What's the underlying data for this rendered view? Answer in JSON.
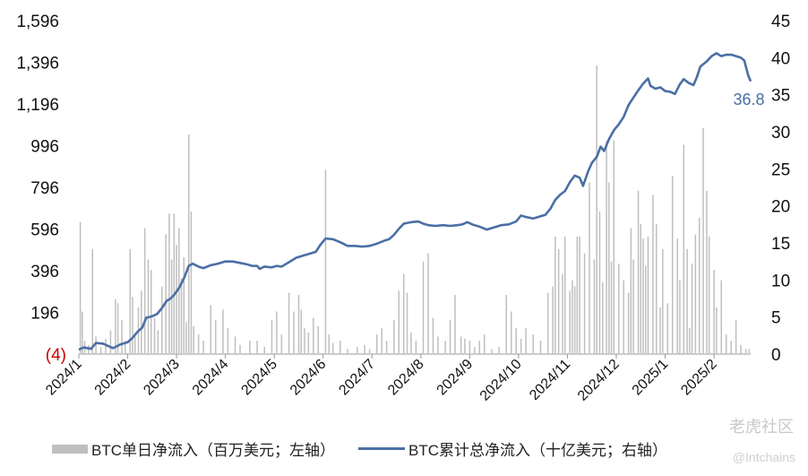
{
  "chart_data": {
    "type": "bar+line",
    "title": "",
    "left_axis": {
      "ticks": [
        "1,596",
        "1,396",
        "1,196",
        "996",
        "796",
        "596",
        "396",
        "196",
        "(4)"
      ],
      "tick_values": [
        1596,
        1396,
        1196,
        996,
        796,
        596,
        396,
        196,
        -4
      ],
      "negative_color": "#cc0000",
      "ylim": [
        -4,
        1596
      ]
    },
    "right_axis": {
      "ticks": [
        "45",
        "40",
        "35",
        "30",
        "25",
        "20",
        "15",
        "10",
        "5",
        "0"
      ],
      "tick_values": [
        45,
        40,
        35,
        30,
        25,
        20,
        15,
        10,
        5,
        0
      ],
      "ylim": [
        0,
        45
      ]
    },
    "x_axis": {
      "ticks": [
        "2024/1",
        "2024/2",
        "2024/3",
        "2024/4",
        "2024/5",
        "2024/6",
        "2024/7",
        "2024/8",
        "2024/9",
        "2024/10",
        "2024/11",
        "2024/12",
        "2025/1",
        "2025/2"
      ],
      "range_months": [
        0,
        13.75
      ]
    },
    "series": [
      {
        "name": "BTC单日净流入（百万美元；左轴）",
        "type": "bar",
        "axis": "left",
        "color": "#bfbfbf",
        "points": [
          [
            0.03,
            630
          ],
          [
            0.07,
            200
          ],
          [
            0.12,
            60
          ],
          [
            0.2,
            40
          ],
          [
            0.28,
            500
          ],
          [
            0.35,
            80
          ],
          [
            0.45,
            30
          ],
          [
            0.55,
            70
          ],
          [
            0.65,
            110
          ],
          [
            0.75,
            260
          ],
          [
            0.8,
            240
          ],
          [
            0.88,
            160
          ],
          [
            0.95,
            60
          ],
          [
            1.05,
            500
          ],
          [
            1.1,
            270
          ],
          [
            1.15,
            90
          ],
          [
            1.22,
            220
          ],
          [
            1.28,
            300
          ],
          [
            1.35,
            600
          ],
          [
            1.42,
            450
          ],
          [
            1.48,
            400
          ],
          [
            1.55,
            170
          ],
          [
            1.62,
            110
          ],
          [
            1.7,
            320
          ],
          [
            1.78,
            570
          ],
          [
            1.85,
            670
          ],
          [
            1.9,
            450
          ],
          [
            1.95,
            670
          ],
          [
            2.0,
            520
          ],
          [
            2.05,
            600
          ],
          [
            2.1,
            360
          ],
          [
            2.15,
            460
          ],
          [
            2.2,
            150
          ],
          [
            2.25,
            1050
          ],
          [
            2.3,
            680
          ],
          [
            2.35,
            130
          ],
          [
            2.45,
            90
          ],
          [
            2.55,
            60
          ],
          [
            2.7,
            230
          ],
          [
            2.8,
            160
          ],
          [
            2.95,
            210
          ],
          [
            3.05,
            120
          ],
          [
            3.2,
            80
          ],
          [
            3.3,
            40
          ],
          [
            3.5,
            60
          ],
          [
            3.65,
            60
          ],
          [
            3.8,
            30
          ],
          [
            3.95,
            160
          ],
          [
            4.05,
            200
          ],
          [
            4.15,
            90
          ],
          [
            4.3,
            290
          ],
          [
            4.4,
            200
          ],
          [
            4.5,
            280
          ],
          [
            4.55,
            210
          ],
          [
            4.62,
            120
          ],
          [
            4.7,
            100
          ],
          [
            4.8,
            170
          ],
          [
            4.9,
            130
          ],
          [
            5.05,
            880
          ],
          [
            5.12,
            90
          ],
          [
            5.2,
            50
          ],
          [
            5.35,
            60
          ],
          [
            5.5,
            20
          ],
          [
            5.7,
            30
          ],
          [
            5.85,
            40
          ],
          [
            5.95,
            20
          ],
          [
            6.1,
            90
          ],
          [
            6.2,
            120
          ],
          [
            6.3,
            60
          ],
          [
            6.45,
            160
          ],
          [
            6.55,
            300
          ],
          [
            6.65,
            380
          ],
          [
            6.72,
            290
          ],
          [
            6.8,
            100
          ],
          [
            6.9,
            60
          ],
          [
            7.05,
            440
          ],
          [
            7.15,
            480
          ],
          [
            7.25,
            170
          ],
          [
            7.35,
            80
          ],
          [
            7.5,
            60
          ],
          [
            7.6,
            160
          ],
          [
            7.7,
            280
          ],
          [
            7.82,
            80
          ],
          [
            7.9,
            70
          ],
          [
            8.0,
            60
          ],
          [
            8.1,
            30
          ],
          [
            8.2,
            60
          ],
          [
            8.3,
            90
          ],
          [
            8.45,
            20
          ],
          [
            8.6,
            30
          ],
          [
            8.75,
            280
          ],
          [
            8.85,
            200
          ],
          [
            8.95,
            120
          ],
          [
            9.05,
            70
          ],
          [
            9.15,
            120
          ],
          [
            9.3,
            90
          ],
          [
            9.45,
            60
          ],
          [
            9.6,
            290
          ],
          [
            9.7,
            320
          ],
          [
            9.75,
            560
          ],
          [
            9.82,
            500
          ],
          [
            9.9,
            380
          ],
          [
            9.95,
            560
          ],
          [
            10.05,
            300
          ],
          [
            10.1,
            350
          ],
          [
            10.15,
            320
          ],
          [
            10.2,
            560
          ],
          [
            10.25,
            560
          ],
          [
            10.35,
            480
          ],
          [
            10.45,
            820
          ],
          [
            10.55,
            450
          ],
          [
            10.6,
            1380
          ],
          [
            10.66,
            680
          ],
          [
            10.72,
            340
          ],
          [
            10.8,
            1020
          ],
          [
            10.85,
            820
          ],
          [
            10.9,
            440
          ],
          [
            10.95,
            1020
          ],
          [
            11.05,
            430
          ],
          [
            11.15,
            350
          ],
          [
            11.25,
            290
          ],
          [
            11.3,
            600
          ],
          [
            11.35,
            450
          ],
          [
            11.45,
            780
          ],
          [
            11.5,
            620
          ],
          [
            11.55,
            550
          ],
          [
            11.6,
            420
          ],
          [
            11.65,
            560
          ],
          [
            11.75,
            760
          ],
          [
            11.82,
            620
          ],
          [
            11.9,
            220
          ],
          [
            11.95,
            500
          ],
          [
            12.05,
            240
          ],
          [
            12.15,
            850
          ],
          [
            12.25,
            550
          ],
          [
            12.3,
            350
          ],
          [
            12.38,
            1000
          ],
          [
            12.45,
            500
          ],
          [
            12.5,
            120
          ],
          [
            12.55,
            430
          ],
          [
            12.62,
            570
          ],
          [
            12.7,
            650
          ],
          [
            12.78,
            1080
          ],
          [
            12.85,
            780
          ],
          [
            12.9,
            560
          ],
          [
            13.0,
            400
          ],
          [
            13.05,
            220
          ],
          [
            13.15,
            350
          ],
          [
            13.25,
            90
          ],
          [
            13.35,
            60
          ],
          [
            13.45,
            160
          ],
          [
            13.55,
            40
          ],
          [
            13.65,
            20
          ],
          [
            13.72,
            20
          ]
        ]
      },
      {
        "name": "BTC累计总净流入（十亿美元；右轴）",
        "type": "line",
        "axis": "right",
        "color": "#4a6fa5",
        "last_label": "36.8",
        "points": [
          [
            0,
            0.6
          ],
          [
            0.1,
            0.9
          ],
          [
            0.25,
            0.7
          ],
          [
            0.35,
            1.5
          ],
          [
            0.5,
            1.4
          ],
          [
            0.7,
            0.8
          ],
          [
            0.85,
            1.3
          ],
          [
            1.0,
            1.6
          ],
          [
            1.1,
            2.2
          ],
          [
            1.2,
            3.0
          ],
          [
            1.3,
            3.6
          ],
          [
            1.38,
            4.9
          ],
          [
            1.5,
            5.1
          ],
          [
            1.6,
            5.4
          ],
          [
            1.7,
            6.2
          ],
          [
            1.8,
            7.2
          ],
          [
            1.88,
            7.5
          ],
          [
            1.95,
            8.0
          ],
          [
            2.05,
            8.9
          ],
          [
            2.15,
            10.2
          ],
          [
            2.25,
            11.9
          ],
          [
            2.33,
            12.2
          ],
          [
            2.45,
            11.8
          ],
          [
            2.55,
            11.6
          ],
          [
            2.7,
            12.0
          ],
          [
            2.85,
            12.2
          ],
          [
            3.0,
            12.5
          ],
          [
            3.15,
            12.5
          ],
          [
            3.3,
            12.3
          ],
          [
            3.45,
            12.1
          ],
          [
            3.55,
            11.9
          ],
          [
            3.65,
            11.9
          ],
          [
            3.7,
            11.5
          ],
          [
            3.8,
            11.8
          ],
          [
            3.95,
            11.7
          ],
          [
            4.05,
            11.9
          ],
          [
            4.15,
            11.8
          ],
          [
            4.3,
            12.4
          ],
          [
            4.45,
            13.0
          ],
          [
            4.6,
            13.3
          ],
          [
            4.75,
            13.6
          ],
          [
            4.85,
            13.8
          ],
          [
            4.95,
            14.8
          ],
          [
            5.05,
            15.6
          ],
          [
            5.2,
            15.5
          ],
          [
            5.35,
            15.1
          ],
          [
            5.5,
            14.6
          ],
          [
            5.65,
            14.6
          ],
          [
            5.8,
            14.5
          ],
          [
            5.95,
            14.6
          ],
          [
            6.1,
            14.9
          ],
          [
            6.25,
            15.3
          ],
          [
            6.35,
            15.5
          ],
          [
            6.45,
            16.1
          ],
          [
            6.55,
            16.9
          ],
          [
            6.65,
            17.6
          ],
          [
            6.8,
            17.8
          ],
          [
            6.95,
            17.9
          ],
          [
            7.05,
            17.6
          ],
          [
            7.15,
            17.4
          ],
          [
            7.3,
            17.3
          ],
          [
            7.45,
            17.4
          ],
          [
            7.6,
            17.3
          ],
          [
            7.75,
            17.4
          ],
          [
            7.85,
            17.5
          ],
          [
            7.95,
            17.8
          ],
          [
            8.05,
            17.5
          ],
          [
            8.2,
            17.2
          ],
          [
            8.35,
            16.8
          ],
          [
            8.5,
            17.1
          ],
          [
            8.65,
            17.4
          ],
          [
            8.8,
            17.5
          ],
          [
            8.95,
            17.9
          ],
          [
            9.05,
            18.7
          ],
          [
            9.15,
            18.5
          ],
          [
            9.3,
            18.3
          ],
          [
            9.45,
            18.6
          ],
          [
            9.55,
            18.8
          ],
          [
            9.65,
            19.6
          ],
          [
            9.75,
            20.8
          ],
          [
            9.85,
            21.5
          ],
          [
            9.95,
            22.0
          ],
          [
            10.05,
            23.2
          ],
          [
            10.15,
            24.1
          ],
          [
            10.25,
            23.8
          ],
          [
            10.32,
            22.7
          ],
          [
            10.42,
            24.6
          ],
          [
            10.5,
            25.8
          ],
          [
            10.6,
            26.6
          ],
          [
            10.68,
            28.0
          ],
          [
            10.75,
            27.4
          ],
          [
            10.85,
            29.0
          ],
          [
            10.95,
            30.2
          ],
          [
            11.05,
            31.0
          ],
          [
            11.15,
            32.0
          ],
          [
            11.25,
            33.6
          ],
          [
            11.35,
            34.6
          ],
          [
            11.45,
            35.6
          ],
          [
            11.55,
            36.5
          ],
          [
            11.65,
            37.2
          ],
          [
            11.7,
            36.2
          ],
          [
            11.8,
            35.8
          ],
          [
            11.9,
            36.0
          ],
          [
            12.0,
            35.5
          ],
          [
            12.1,
            35.4
          ],
          [
            12.2,
            35.1
          ],
          [
            12.3,
            36.4
          ],
          [
            12.38,
            37.1
          ],
          [
            12.48,
            36.6
          ],
          [
            12.58,
            36.3
          ],
          [
            12.65,
            37.4
          ],
          [
            12.72,
            38.8
          ],
          [
            12.85,
            39.5
          ],
          [
            12.95,
            40.2
          ],
          [
            13.05,
            40.6
          ],
          [
            13.15,
            40.2
          ],
          [
            13.25,
            40.4
          ],
          [
            13.35,
            40.4
          ],
          [
            13.45,
            40.2
          ],
          [
            13.55,
            40.0
          ],
          [
            13.62,
            39.6
          ],
          [
            13.7,
            37.6
          ],
          [
            13.75,
            36.8
          ]
        ]
      }
    ],
    "legend_position": "bottom",
    "grid": false
  },
  "legend": {
    "bar_label": "BTC单日净流入（百万美元；左轴）",
    "line_label": "BTC累计总净流入（十亿美元；右轴）"
  },
  "watermark": {
    "text": "老虎社区",
    "sub": "@Intchains"
  }
}
